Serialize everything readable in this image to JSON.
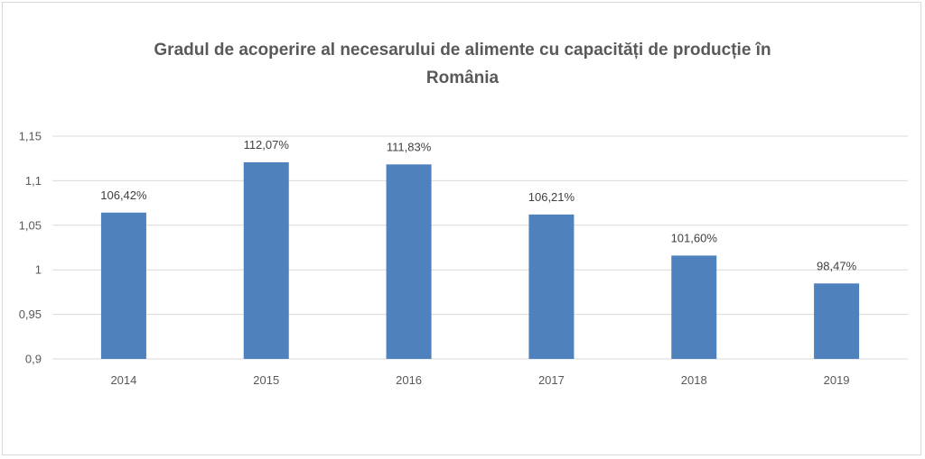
{
  "chart_data": {
    "type": "bar",
    "title_lines": [
      "Gradul de acoperire al necesarului de alimente cu capacități de producție în",
      "România"
    ],
    "categories": [
      "2014",
      "2015",
      "2016",
      "2017",
      "2018",
      "2019"
    ],
    "values": [
      1.0642,
      1.1207,
      1.1183,
      1.0621,
      1.016,
      0.9847
    ],
    "data_labels": [
      "106,42%",
      "112,07%",
      "111,83%",
      "106,21%",
      "101,60%",
      "98,47%"
    ],
    "y_ticks": [
      0.9,
      0.95,
      1,
      1.05,
      1.1,
      1.15
    ],
    "y_tick_labels": [
      "0,9",
      "0,95",
      "1",
      "1,05",
      "1,1",
      "1,15"
    ],
    "ylim": [
      0.9,
      1.15
    ],
    "grid": true,
    "legend": "none",
    "bar_color": "#4f81bd",
    "xlabel": "",
    "ylabel": ""
  }
}
